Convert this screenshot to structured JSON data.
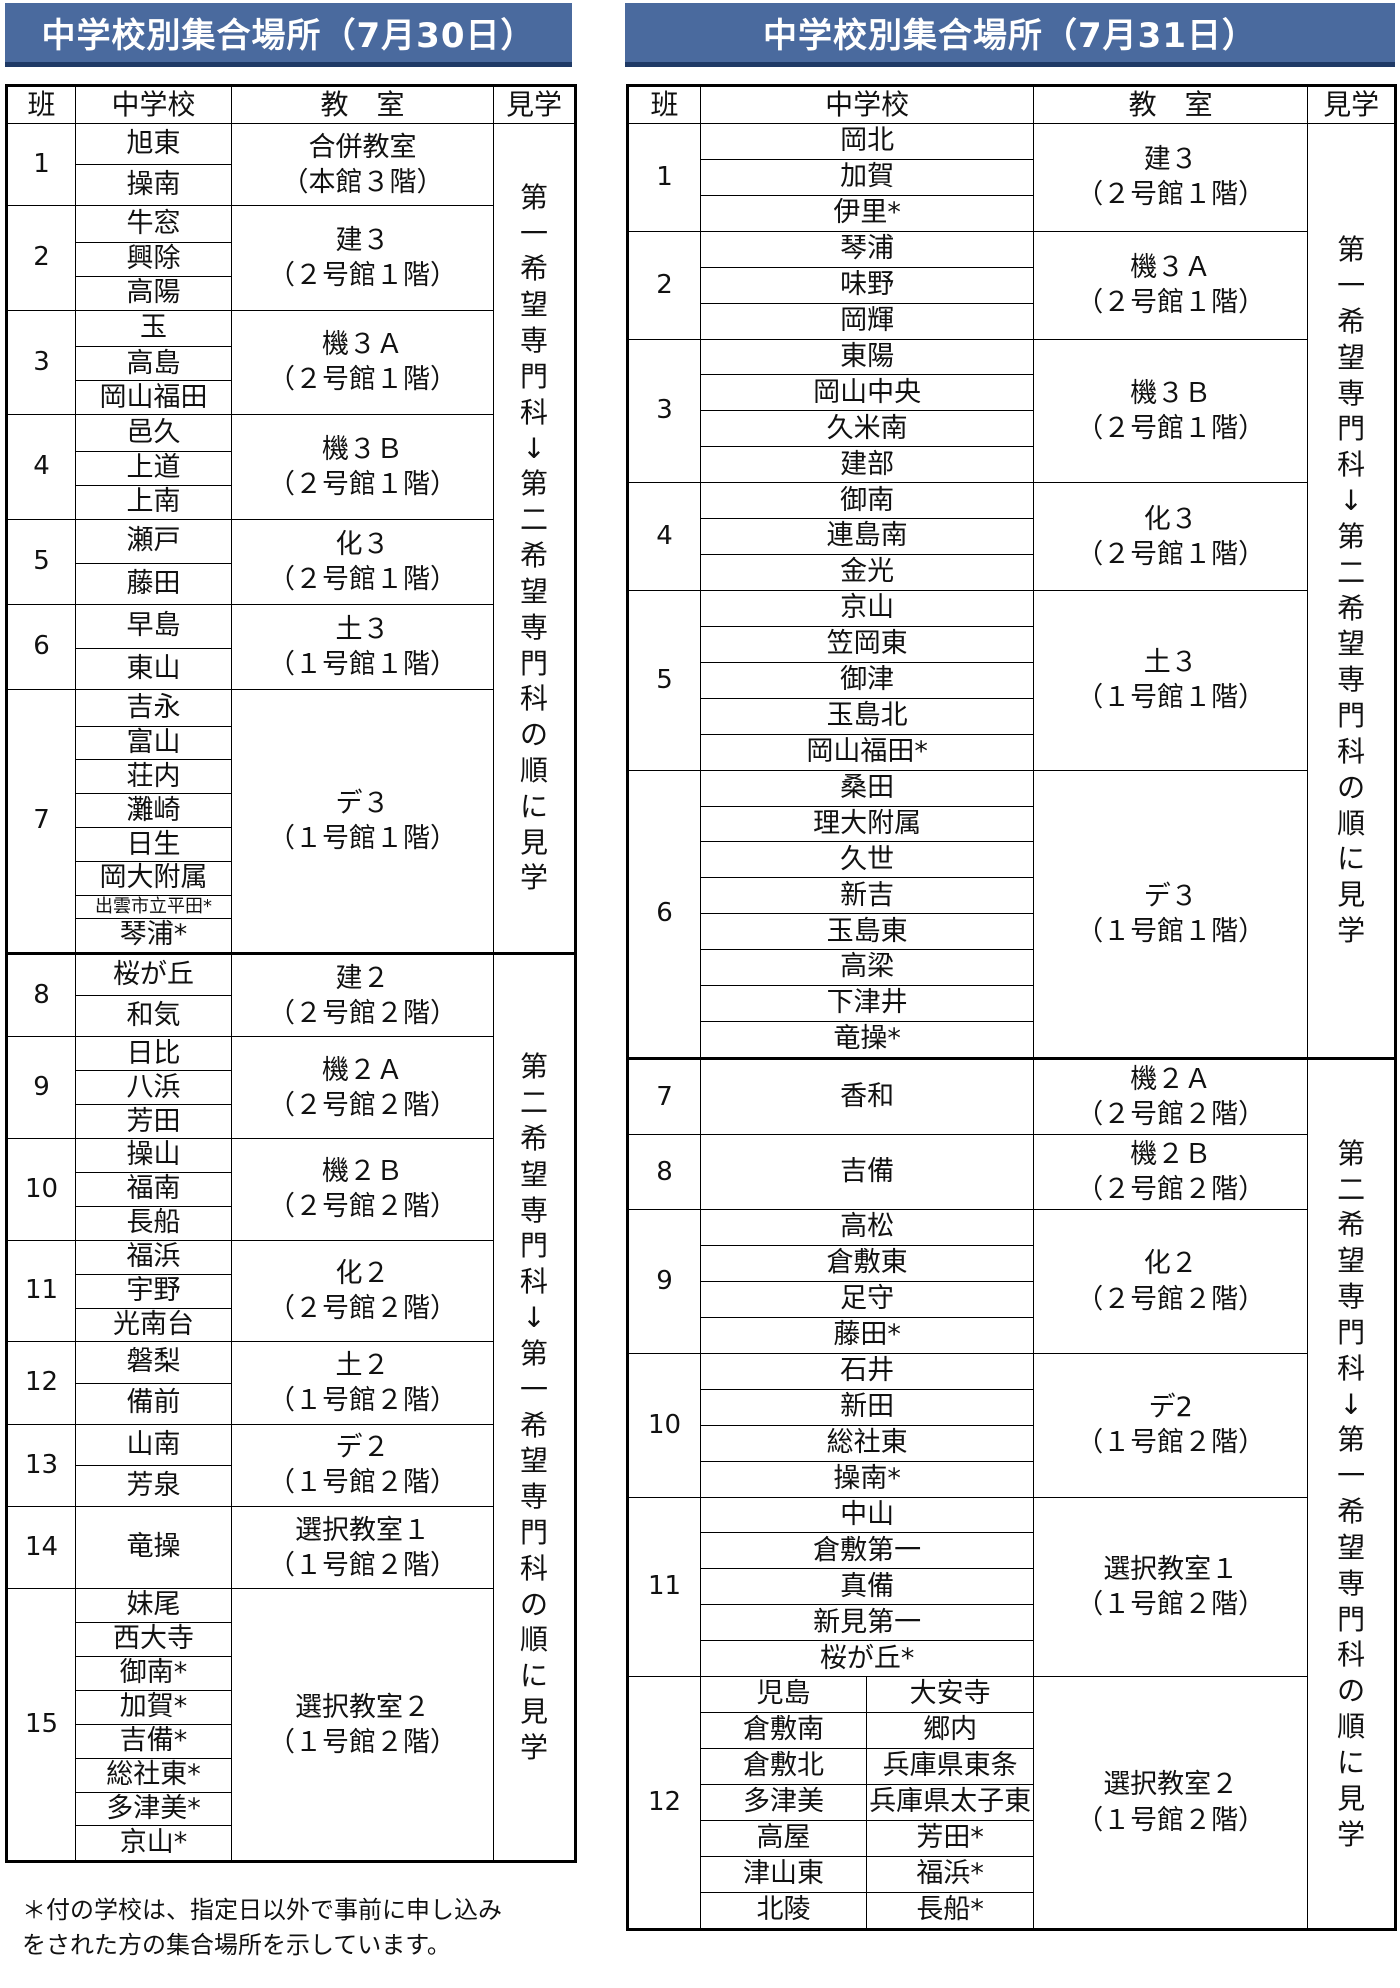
{
  "left": {
    "title": "中学校別集合場所（7月30日）",
    "headers": [
      "班",
      "中学校",
      "教　室",
      "見学"
    ],
    "groups": [
      {
        "han": "1",
        "schools": [
          "旭東",
          "操南"
        ],
        "room": [
          "合併教室",
          "（本館３階）"
        ]
      },
      {
        "han": "2",
        "schools": [
          "牛窓",
          "興除",
          "高陽"
        ],
        "room": [
          "建３",
          "（２号館１階）"
        ]
      },
      {
        "han": "3",
        "schools": [
          "玉",
          "高島",
          "岡山福田"
        ],
        "room": [
          "機３Ａ",
          "（２号館１階）"
        ]
      },
      {
        "han": "4",
        "schools": [
          "邑久",
          "上道",
          "上南"
        ],
        "room": [
          "機３Ｂ",
          "（２号館１階）"
        ]
      },
      {
        "han": "5",
        "schools": [
          "瀬戸",
          "藤田"
        ],
        "room": [
          "化３",
          "（２号館１階）"
        ]
      },
      {
        "han": "6",
        "schools": [
          "早島",
          "東山"
        ],
        "room": [
          "土３",
          "（１号館１階）"
        ]
      },
      {
        "han": "7",
        "schools": [
          "吉永",
          "富山",
          "荘内",
          "灘崎",
          "日生",
          "岡大附属",
          "出雲市立平田*",
          "琴浦*"
        ],
        "room": [
          "デ３",
          "（１号館１階）"
        ]
      },
      {
        "han": "8",
        "schools": [
          "桜が丘",
          "和気"
        ],
        "room": [
          "建２",
          "（２号館２階）"
        ]
      },
      {
        "han": "9",
        "schools": [
          "日比",
          "八浜",
          "芳田"
        ],
        "room": [
          "機２Ａ",
          "（２号館２階）"
        ]
      },
      {
        "han": "10",
        "schools": [
          "操山",
          "福南",
          "長船"
        ],
        "room": [
          "機２Ｂ",
          "（２号館２階）"
        ]
      },
      {
        "han": "11",
        "schools": [
          "福浜",
          "宇野",
          "光南台"
        ],
        "room": [
          "化２",
          "（２号館２階）"
        ]
      },
      {
        "han": "12",
        "schools": [
          "磐梨",
          "備前"
        ],
        "room": [
          "土２",
          "（１号館２階）"
        ]
      },
      {
        "han": "13",
        "schools": [
          "山南",
          "芳泉"
        ],
        "room": [
          "デ２",
          "（１号館２階）"
        ]
      },
      {
        "han": "14",
        "schools": [
          "竜操"
        ],
        "room": [
          "選択教室１",
          "（１号館２階）"
        ]
      },
      {
        "han": "15",
        "schools": [
          "妹尾",
          "西大寺",
          "御南*",
          "加賀*",
          "吉備*",
          "総社東*",
          "多津美*",
          "京山*"
        ],
        "room": [
          "選択教室２",
          "（１号館２階）"
        ]
      }
    ],
    "side": [
      "第一希望専門科↓第二希望専門科の順に見学",
      "第二希望専門科↓第一希望専門科の順に見学"
    ]
  },
  "right": {
    "title": "中学校別集合場所（7月31日）",
    "headers": [
      "班",
      "中学校",
      "教　室",
      "見学"
    ],
    "groups": [
      {
        "han": "1",
        "schools": [
          "岡北",
          "加賀",
          "伊里*"
        ],
        "room": [
          "建３",
          "（２号館１階）"
        ]
      },
      {
        "han": "2",
        "schools": [
          "琴浦",
          "味野",
          "岡輝"
        ],
        "room": [
          "機３Ａ",
          "（２号館１階）"
        ]
      },
      {
        "han": "3",
        "schools": [
          "東陽",
          "岡山中央",
          "久米南",
          "建部"
        ],
        "room": [
          "機３Ｂ",
          "（２号館１階）"
        ]
      },
      {
        "han": "4",
        "schools": [
          "御南",
          "連島南",
          "金光"
        ],
        "room": [
          "化３",
          "（２号館１階）"
        ]
      },
      {
        "han": "5",
        "schools": [
          "京山",
          "笠岡東",
          "御津",
          "玉島北",
          "岡山福田*"
        ],
        "room": [
          "土３",
          "（１号館１階）"
        ]
      },
      {
        "han": "6",
        "schools": [
          "桑田",
          "理大附属",
          "久世",
          "新吉",
          "玉島東",
          "高梁",
          "下津井",
          "竜操*"
        ],
        "room": [
          "デ３",
          "（１号館１階）"
        ]
      },
      {
        "han": "7",
        "schools": [
          "香和"
        ],
        "room": [
          "機２Ａ",
          "（２号館２階）"
        ]
      },
      {
        "han": "8",
        "schools": [
          "吉備"
        ],
        "room": [
          "機２Ｂ",
          "（２号館２階）"
        ]
      },
      {
        "han": "9",
        "schools": [
          "高松",
          "倉敷東",
          "足守",
          "藤田*"
        ],
        "room": [
          "化２",
          "（２号館２階）"
        ]
      },
      {
        "han": "10",
        "schools": [
          "石井",
          "新田",
          "総社東",
          "操南*"
        ],
        "room": [
          "デ2",
          "（１号館２階）"
        ]
      },
      {
        "han": "11",
        "schools": [
          "中山",
          "倉敷第一",
          "真備",
          "新見第一",
          "桜が丘*"
        ],
        "room": [
          "選択教室１",
          "（１号館２階）"
        ]
      },
      {
        "han": "12",
        "pairs": [
          [
            "児島",
            "大安寺"
          ],
          [
            "倉敷南",
            "郷内"
          ],
          [
            "倉敷北",
            "兵庫県東条"
          ],
          [
            "多津美",
            "兵庫県太子東"
          ],
          [
            "高屋",
            "芳田*"
          ],
          [
            "津山東",
            "福浜*"
          ],
          [
            "北陵",
            "長船*"
          ]
        ],
        "room": [
          "選択教室２",
          "（１号館２階）"
        ]
      }
    ],
    "side": [
      "第一希望専門科↓第二希望専門科の順に見学",
      "第二希望専門科↓第一希望専門科の順に見学"
    ]
  },
  "note": [
    "＊付の学校は、指定日以外で事前に申し込み",
    "をされた方の集合場所を示しています。"
  ]
}
